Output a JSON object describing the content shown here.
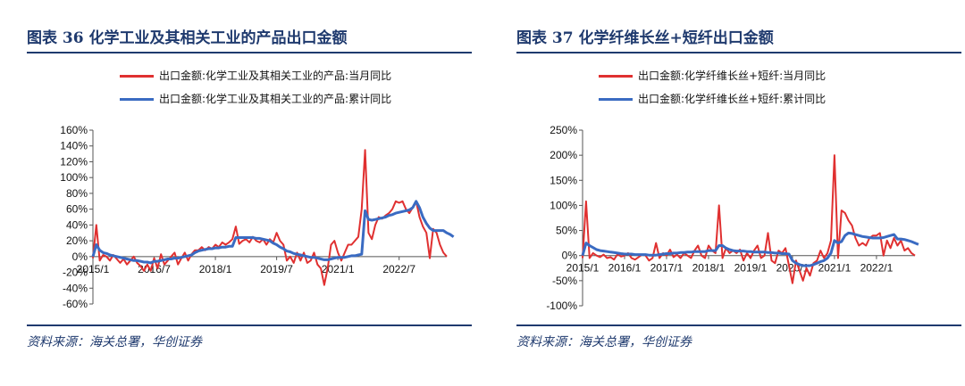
{
  "colors": {
    "monthly": "#e03030",
    "cumulative": "#3a6bc2",
    "title": "#1f3a6e"
  },
  "chart_data": [
    {
      "type": "line",
      "title": "图表 36  化学工业及其相关工业的产品出口金额",
      "source": "资料来源：海关总署，华创证券",
      "xlabel": "",
      "ylabel": "",
      "ylim": [
        -60,
        160
      ],
      "yticks": [
        "160%",
        "140%",
        "120%",
        "100%",
        "80%",
        "60%",
        "40%",
        "20%",
        "0%",
        "-20%",
        "-40%",
        "-60%"
      ],
      "ytick_values": [
        160,
        140,
        120,
        100,
        80,
        60,
        40,
        20,
        0,
        -20,
        -40,
        -60
      ],
      "xticks": [
        "2015/1",
        "2016/7",
        "2018/1",
        "2019/7",
        "2021/1",
        "2022/7"
      ],
      "xtick_index": [
        0,
        18,
        36,
        54,
        72,
        90
      ],
      "legend_position": "top",
      "series": [
        {
          "name": "出口金额:化学工业及其相关工业的产品:当月同比",
          "color": "#e03030",
          "values": [
            -2,
            40,
            -5,
            2,
            0,
            -5,
            2,
            -3,
            -8,
            -3,
            -10,
            -5,
            0,
            -8,
            -12,
            -18,
            -10,
            -18,
            -2,
            -15,
            3,
            -10,
            -5,
            0,
            5,
            -10,
            -2,
            5,
            -5,
            3,
            8,
            8,
            12,
            8,
            12,
            10,
            15,
            12,
            18,
            15,
            18,
            22,
            38,
            16,
            20,
            22,
            18,
            25,
            20,
            18,
            22,
            15,
            22,
            18,
            30,
            20,
            15,
            -5,
            0,
            -8,
            5,
            -5,
            5,
            -8,
            -5,
            5,
            -10,
            -15,
            -36,
            -15,
            15,
            20,
            5,
            -5,
            5,
            15,
            15,
            20,
            25,
            60,
            135,
            30,
            22,
            40,
            50,
            48,
            52,
            55,
            60,
            70,
            68,
            70,
            60,
            55,
            62,
            70,
            50,
            38,
            30,
            -2,
            35,
            30,
            15,
            5,
            0
          ]
        },
        {
          "name": "出口金额:化学工业及其相关工业的产品:累计同比",
          "color": "#3a6bc2",
          "values": [
            0,
            15,
            8,
            5,
            4,
            2,
            1,
            0,
            -1,
            -2,
            -3,
            -4,
            -5,
            -5,
            -6,
            -7,
            -7,
            -8,
            -6,
            -6,
            -5,
            -4,
            -3,
            -3,
            -2,
            -2,
            -1,
            0,
            1,
            2,
            5,
            7,
            8,
            9,
            10,
            10,
            11,
            11,
            12,
            12,
            13,
            13,
            24,
            24,
            24,
            24,
            24,
            24,
            23,
            23,
            22,
            21,
            20,
            17,
            15,
            12,
            10,
            7,
            6,
            4,
            3,
            2,
            1,
            0,
            -1,
            -1,
            -2,
            -3,
            -4,
            -4,
            -3,
            -2,
            -1,
            -1,
            -1,
            0,
            1,
            1,
            2,
            3,
            58,
            47,
            46,
            47,
            48,
            49,
            50,
            52,
            53,
            55,
            56,
            57,
            58,
            59,
            62,
            70,
            62,
            50,
            42,
            36,
            33,
            33,
            33,
            33,
            30,
            28,
            25
          ]
        }
      ]
    },
    {
      "type": "line",
      "title": "图表 37  化学纤维长丝+短纤出口金额",
      "source": "资料来源：海关总署，华创证券",
      "xlabel": "",
      "ylabel": "",
      "ylim": [
        -100,
        250
      ],
      "yticks": [
        "250%",
        "200%",
        "150%",
        "100%",
        "50%",
        "0%",
        "-50%",
        "-100%"
      ],
      "ytick_values": [
        250,
        200,
        150,
        100,
        50,
        0,
        -50,
        -100
      ],
      "xticks": [
        "2015/1",
        "2016/1",
        "2017/1",
        "2018/1",
        "2019/1",
        "2020/1",
        "2021/1",
        "2022/1"
      ],
      "xtick_index": [
        0,
        12,
        24,
        36,
        48,
        60,
        72,
        84
      ],
      "legend_position": "top",
      "series": [
        {
          "name": "出口金额:化学纤维长丝+短纤:当月同比",
          "color": "#e03030",
          "values": [
            -5,
            108,
            -5,
            5,
            0,
            -3,
            2,
            -5,
            -3,
            -8,
            3,
            -2,
            0,
            5,
            -5,
            -8,
            -3,
            2,
            0,
            -10,
            -5,
            25,
            -5,
            5,
            0,
            12,
            -3,
            2,
            -5,
            5,
            0,
            -5,
            10,
            20,
            0,
            -5,
            20,
            10,
            5,
            100,
            -5,
            15,
            5,
            10,
            5,
            12,
            -10,
            5,
            -5,
            10,
            20,
            -5,
            0,
            45,
            -10,
            -15,
            10,
            5,
            15,
            -20,
            -55,
            -10,
            -30,
            -50,
            -25,
            -40,
            -15,
            -10,
            10,
            -5,
            5,
            30,
            200,
            -5,
            90,
            85,
            70,
            60,
            35,
            20,
            25,
            20,
            35,
            40,
            40,
            45,
            0,
            30,
            15,
            35,
            20,
            30,
            10,
            15,
            5,
            0
          ]
        },
        {
          "name": "出口金额:化学纤维长丝+短纤:累计同比",
          "color": "#3a6bc2",
          "values": [
            0,
            25,
            20,
            16,
            12,
            10,
            9,
            8,
            7,
            6,
            5,
            4,
            3,
            3,
            3,
            2,
            2,
            2,
            2,
            1,
            1,
            1,
            2,
            3,
            4,
            4,
            5,
            5,
            6,
            6,
            7,
            7,
            8,
            8,
            8,
            8,
            10,
            10,
            10,
            20,
            20,
            15,
            12,
            10,
            9,
            9,
            9,
            8,
            8,
            7,
            7,
            7,
            7,
            6,
            6,
            5,
            5,
            4,
            4,
            3,
            -10,
            -15,
            -18,
            -20,
            -20,
            -20,
            -18,
            -15,
            -12,
            -10,
            -5,
            5,
            30,
            25,
            28,
            40,
            45,
            44,
            42,
            40,
            38,
            37,
            36,
            35,
            35,
            35,
            36,
            38,
            40,
            42,
            33,
            33,
            32,
            30,
            28,
            25,
            22
          ]
        }
      ]
    }
  ]
}
